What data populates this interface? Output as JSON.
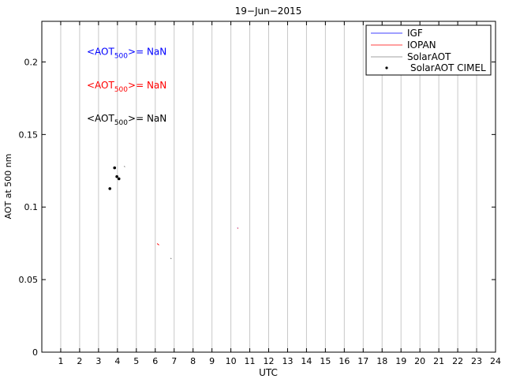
{
  "chart_data": {
    "type": "scatter",
    "title": "19−Jun−2015",
    "xlabel": "UTC",
    "ylabel": "AOT at 500 nm",
    "xlim": [
      0,
      24
    ],
    "ylim": [
      0,
      0.228
    ],
    "xticks": [
      1,
      2,
      3,
      4,
      5,
      6,
      7,
      8,
      9,
      10,
      11,
      12,
      13,
      14,
      15,
      16,
      17,
      18,
      19,
      20,
      21,
      22,
      23,
      24
    ],
    "yticks": [
      0,
      0.05,
      0.1,
      0.15,
      0.2
    ],
    "ytick_labels": [
      "0",
      "0.05",
      "0.1",
      "0.15",
      "0.2"
    ],
    "grid": true,
    "legend_position": "top-right",
    "annotations": [
      {
        "prefix": "<AOT",
        "subscript": "500",
        "suffix": ">=  NaN",
        "color": "#0000ff",
        "y": 0.207
      },
      {
        "prefix": "<AOT",
        "subscript": "500",
        "suffix": ">=  NaN",
        "color": "#ff0000",
        "y": 0.184
      },
      {
        "prefix": "<AOT",
        "subscript": "500",
        "suffix": ">=  NaN",
        "color": "#000000",
        "y": 0.161
      }
    ],
    "series": [
      {
        "name": "IGF",
        "color": "#0000ff",
        "style": "line",
        "points": [
          [
            10.35,
            0.0857
          ],
          [
            10.37,
            0.0853
          ]
        ]
      },
      {
        "name": "IOPAN",
        "color": "#ff0000",
        "style": "line",
        "points": [
          [
            6.1,
            0.0748
          ],
          [
            6.2,
            0.0738
          ],
          [
            10.36,
            0.0856
          ],
          [
            10.38,
            0.0852
          ]
        ]
      },
      {
        "name": "SolarAOT",
        "color": "#808080",
        "style": "line",
        "points": [
          [
            4.35,
            0.1282
          ],
          [
            4.4,
            0.1276
          ],
          [
            6.8,
            0.0648
          ],
          [
            6.86,
            0.0643
          ]
        ]
      },
      {
        "name": "SolarAOT CIMEL",
        "color": "#000000",
        "style": "marker",
        "points": [
          [
            3.85,
            0.127
          ],
          [
            3.97,
            0.121
          ],
          [
            4.08,
            0.1195
          ],
          [
            3.6,
            0.1127
          ]
        ]
      }
    ]
  }
}
